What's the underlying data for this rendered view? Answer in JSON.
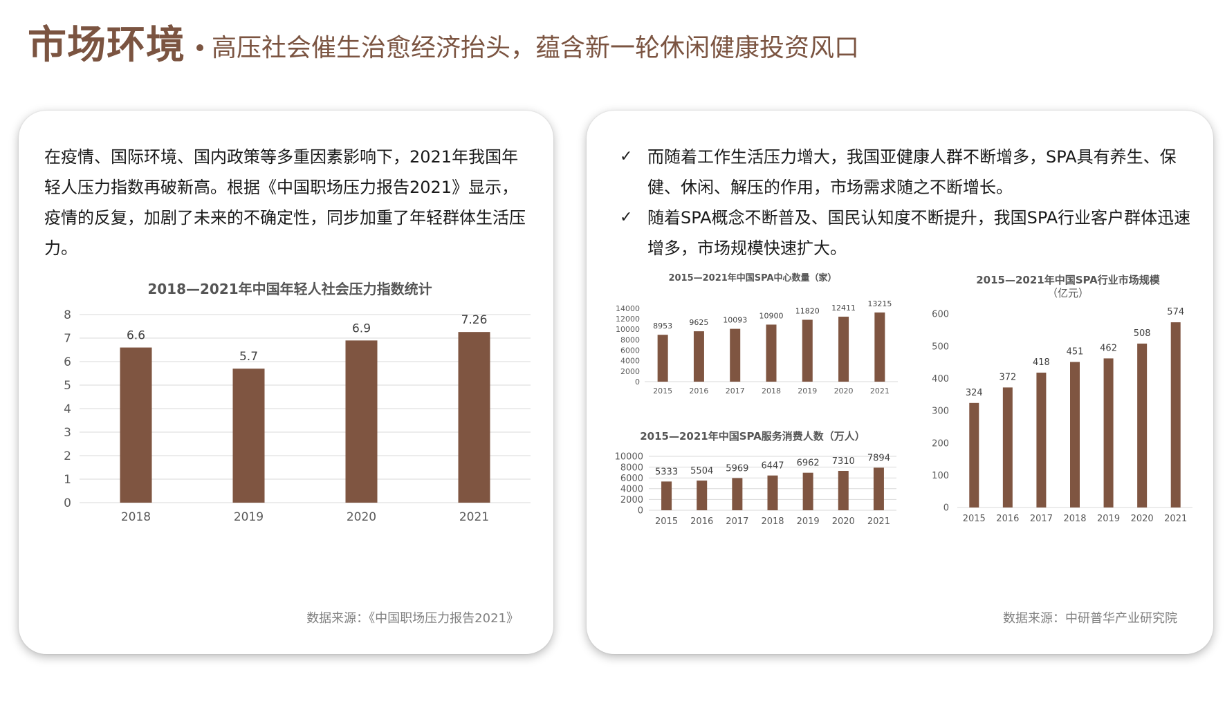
{
  "header": {
    "title": "市场环境",
    "subtitle": "高压社会催生治愈经济抬头，蕴含新一轮休闲健康投资风口"
  },
  "left_panel": {
    "paragraph": "在疫情、国际环境、国内政策等多重因素影响下，2021年我国年轻人压力指数再破新高。根据《中国职场压力报告2021》显示，疫情的反复，加剧了未来的不确定性，同步加重了年轻群体生活压力。",
    "source": "数据来源：《中国职场压力报告2021》"
  },
  "right_panel": {
    "check_icon": "check-icon",
    "bullets": [
      "而随着工作生活压力增大，我国亚健康人群不断增多，SPA具有养生、保健、休闲、解压的作用，市场需求随之不断增长。",
      "随着SPA概念不断普及、国民认知度不断提升，我国SPA行业客户群体迅速增多，市场规模快速扩大。"
    ],
    "source": "数据来源：中研普华产业研究院"
  },
  "colors": {
    "bar": "#7f5541",
    "accent": "#7b5441"
  },
  "chart_data": [
    {
      "id": "pressure",
      "type": "bar",
      "title": "2018—2021年中国年轻人社会压力指数统计",
      "subtitle": "",
      "categories": [
        "2018",
        "2019",
        "2020",
        "2021"
      ],
      "values": [
        6.6,
        5.7,
        6.9,
        7.26
      ],
      "labels": [
        "6.6",
        "5.7",
        "6.9",
        "7.26"
      ],
      "ylim": [
        0,
        8
      ],
      "yticks": [
        "0",
        "1",
        "2",
        "3",
        "4",
        "5",
        "6",
        "7",
        "8"
      ],
      "grid": true
    },
    {
      "id": "centers",
      "type": "bar",
      "title": "2015—2021年中国SPA中心数量（家）",
      "subtitle": "",
      "categories": [
        "2015",
        "2016",
        "2017",
        "2018",
        "2019",
        "2020",
        "2021"
      ],
      "values": [
        8953,
        9625,
        10093,
        10900,
        11820,
        12411,
        13215
      ],
      "labels": [
        "8953",
        "9625",
        "10093",
        "10900",
        "11820",
        "12411",
        "13215"
      ],
      "ylim": [
        0,
        14000
      ],
      "yticks": [
        "0",
        "2000",
        "4000",
        "6000",
        "8000",
        "10000",
        "12000",
        "14000"
      ],
      "grid": false
    },
    {
      "id": "consumers",
      "type": "bar",
      "title": "2015—2021年中国SPA服务消费人数（万人）",
      "subtitle": "",
      "categories": [
        "2015",
        "2016",
        "2017",
        "2018",
        "2019",
        "2020",
        "2021"
      ],
      "values": [
        5333,
        5504,
        5969,
        6447,
        6962,
        7310,
        7894
      ],
      "labels": [
        "5333",
        "5504",
        "5969",
        "6447",
        "6962",
        "7310",
        "7894"
      ],
      "ylim": [
        0,
        10000
      ],
      "yticks": [
        "0",
        "2000",
        "4000",
        "6000",
        "8000",
        "10000"
      ],
      "grid": true
    },
    {
      "id": "market",
      "type": "bar",
      "title": "2015—2021年中国SPA行业市场规模",
      "subtitle": "（亿元）",
      "categories": [
        "2015",
        "2016",
        "2017",
        "2018",
        "2019",
        "2020",
        "2021"
      ],
      "values": [
        324,
        372,
        418,
        451,
        462,
        508,
        574
      ],
      "labels": [
        "324",
        "372",
        "418",
        "451",
        "462",
        "508",
        "574"
      ],
      "ylim": [
        0,
        600
      ],
      "yticks": [
        "0",
        "100",
        "200",
        "300",
        "400",
        "500",
        "600"
      ],
      "grid": false
    }
  ]
}
